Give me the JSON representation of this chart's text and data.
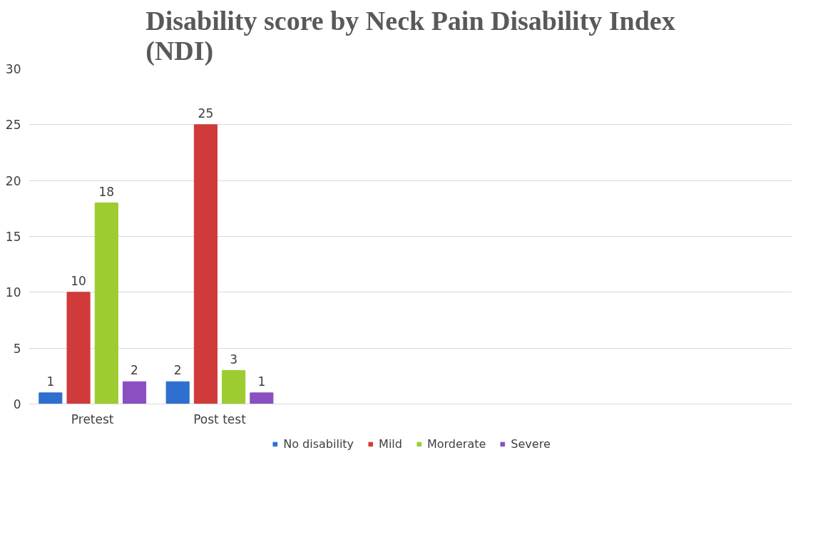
{
  "chart_data": {
    "type": "bar",
    "title": "Disability score by Neck Pain Disability Index\n(NDI)",
    "categories": [
      "Pretest",
      "Post test",
      null,
      null,
      null,
      null
    ],
    "series": [
      {
        "name": "No disability",
        "color": "#2e6fd0",
        "values": [
          1,
          2,
          null,
          null,
          null,
          null
        ]
      },
      {
        "name": "Mild",
        "color": "#d03a3a",
        "values": [
          10,
          25,
          null,
          null,
          null,
          null
        ]
      },
      {
        "name": "Morderate",
        "color": "#9ccc30",
        "values": [
          18,
          3,
          null,
          null,
          null,
          null
        ]
      },
      {
        "name": "Severe",
        "color": "#8a4fc0",
        "values": [
          2,
          1,
          null,
          null,
          null,
          null
        ]
      }
    ],
    "ylim": [
      0,
      30
    ],
    "yticks": [
      0,
      5,
      10,
      15,
      20,
      25,
      30
    ],
    "grid": "y",
    "legend": "bottom",
    "data_labels": true
  }
}
